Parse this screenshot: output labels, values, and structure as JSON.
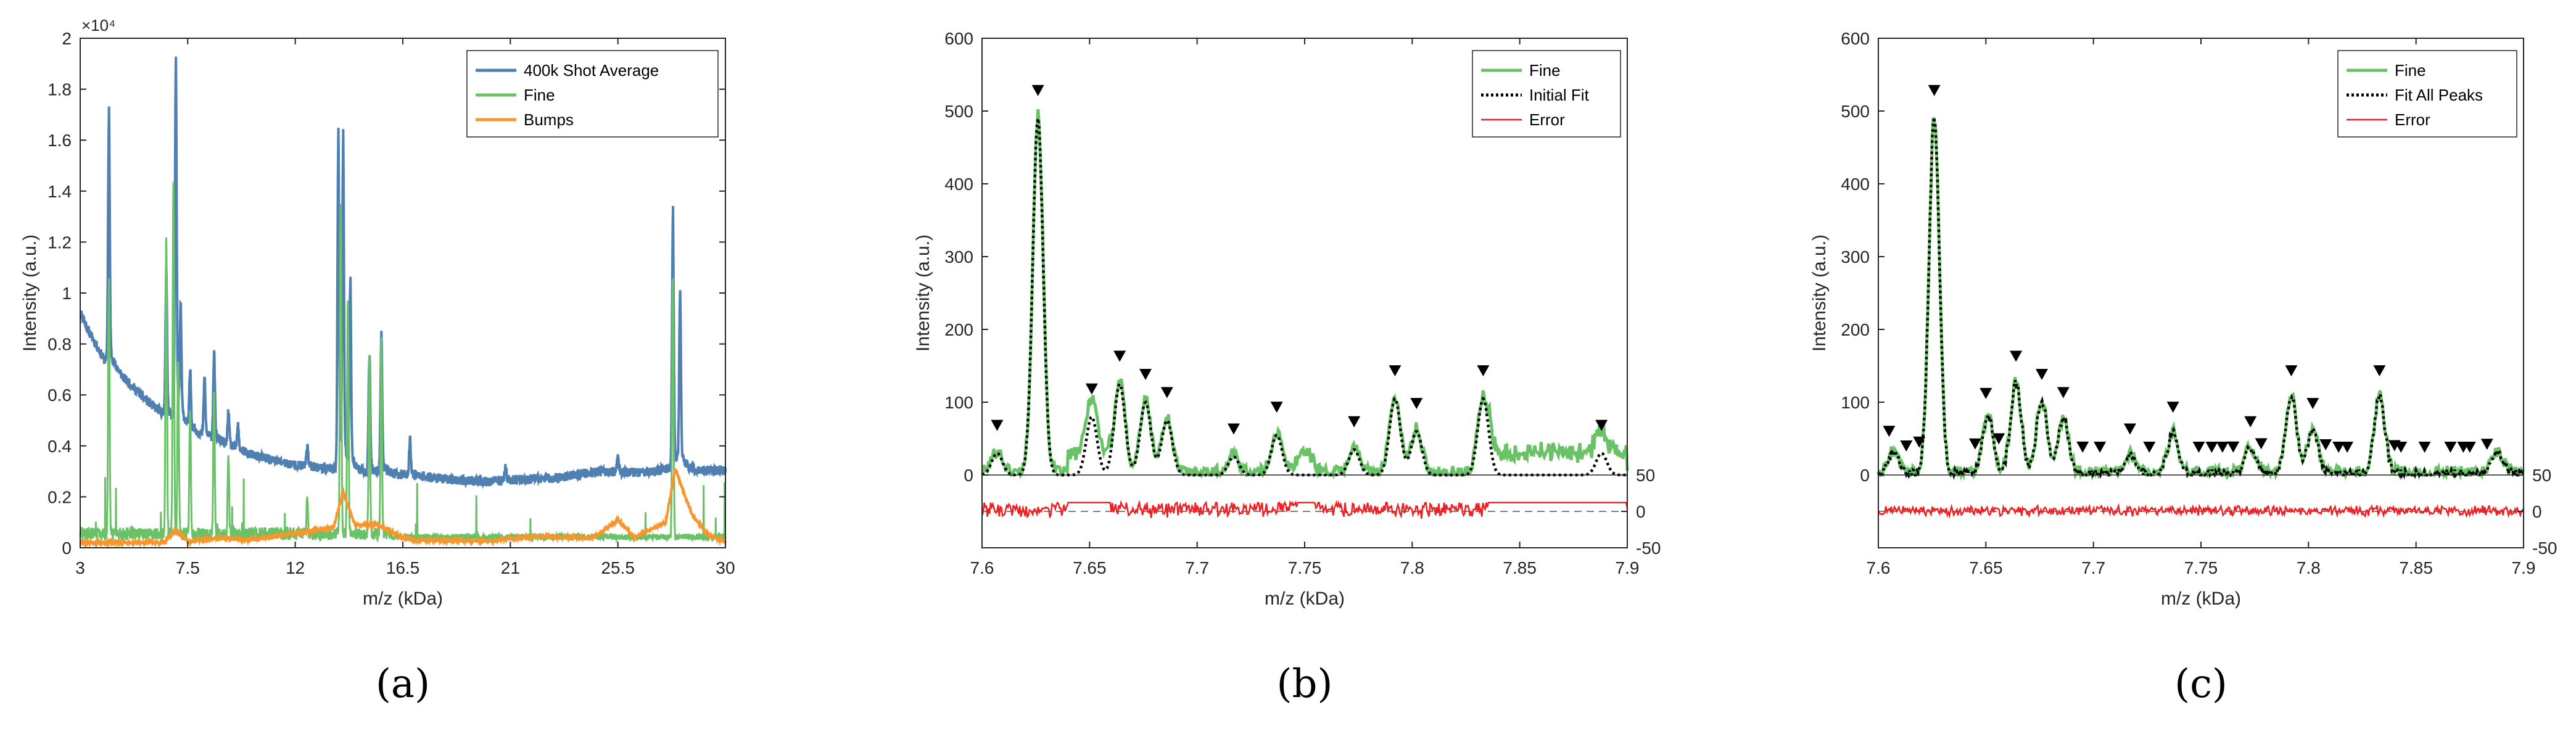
{
  "chart_data": [
    {
      "panel": "(a)",
      "type": "line",
      "title": "",
      "xlabel": "m/z (kDa)",
      "ylabel": "Intensity (a.u.)",
      "xlim": [
        3,
        30
      ],
      "ylim": [
        0,
        20000
      ],
      "y_exponent_label": "×10⁴",
      "xticks": [
        3,
        7.5,
        12,
        16.5,
        21,
        25.5,
        30
      ],
      "xtick_labels": [
        "3",
        "7.5",
        "12",
        "16.5",
        "21",
        "25.5",
        "30"
      ],
      "yticks": [
        0,
        2000,
        4000,
        6000,
        8000,
        10000,
        12000,
        14000,
        16000,
        18000,
        20000
      ],
      "ytick_labels": [
        "0",
        "0.2",
        "0.4",
        "0.6",
        "0.8",
        "1",
        "1.2",
        "1.4",
        "1.6",
        "1.8",
        "2"
      ],
      "legend_position": "top-right",
      "series": [
        {
          "name": "400k Shot Average",
          "color": "#4f80b1",
          "baseline": [
            [
              3,
              9300
            ],
            [
              3.3,
              8600
            ],
            [
              4,
              7400
            ],
            [
              5,
              6500
            ],
            [
              6,
              5600
            ],
            [
              7,
              4950
            ],
            [
              8,
              4500
            ],
            [
              9,
              4100
            ],
            [
              10,
              3700
            ],
            [
              11,
              3450
            ],
            [
              12,
              3250
            ],
            [
              13,
              3150
            ],
            [
              14,
              3050
            ],
            [
              15,
              2950
            ],
            [
              16,
              2900
            ],
            [
              17,
              2850
            ],
            [
              18,
              2720
            ],
            [
              19,
              2650
            ],
            [
              20,
              2600
            ],
            [
              21,
              2650
            ],
            [
              22,
              2700
            ],
            [
              23,
              2750
            ],
            [
              24,
              2900
            ],
            [
              25,
              3000
            ],
            [
              26,
              2950
            ],
            [
              27,
              3000
            ],
            [
              28,
              3150
            ],
            [
              29,
              3050
            ],
            [
              30,
              3000
            ]
          ],
          "peaks": [
            [
              4.2,
              16600
            ],
            [
              6.6,
              10500
            ],
            [
              7.0,
              18500
            ],
            [
              7.2,
              9000
            ],
            [
              7.6,
              6800
            ],
            [
              8.2,
              6600
            ],
            [
              8.6,
              7500
            ],
            [
              9.2,
              5300
            ],
            [
              9.6,
              4700
            ],
            [
              12.5,
              4000
            ],
            [
              13.8,
              15700
            ],
            [
              14.0,
              15200
            ],
            [
              14.3,
              10000
            ],
            [
              15.1,
              7500
            ],
            [
              15.6,
              8200
            ],
            [
              16.8,
              4200
            ],
            [
              20.8,
              3200
            ],
            [
              25.5,
              3600
            ],
            [
              27.8,
              12600
            ],
            [
              28.1,
              9800
            ]
          ]
        },
        {
          "name": "Fine",
          "color": "#6ac267",
          "peaks": [
            [
              4.2,
              10000
            ],
            [
              6.6,
              11800
            ],
            [
              6.9,
              13800
            ],
            [
              7.1,
              7000
            ],
            [
              7.6,
              5000
            ],
            [
              8.6,
              5800
            ],
            [
              9.2,
              3000
            ],
            [
              12.5,
              1500
            ],
            [
              13.9,
              13000
            ],
            [
              14.2,
              9300
            ],
            [
              15.1,
              6900
            ],
            [
              15.6,
              7600
            ],
            [
              27.8,
              10200
            ]
          ]
        },
        {
          "name": "Bumps",
          "color": "#f6962d",
          "values": [
            [
              3,
              200
            ],
            [
              6.5,
              200
            ],
            [
              7,
              700
            ],
            [
              7.5,
              250
            ],
            [
              9,
              400
            ],
            [
              10,
              300
            ],
            [
              13.6,
              800
            ],
            [
              14.0,
              2200
            ],
            [
              14.5,
              900
            ],
            [
              15.5,
              900
            ],
            [
              16.5,
              400
            ],
            [
              17,
              300
            ],
            [
              20,
              250
            ],
            [
              21,
              350
            ],
            [
              22,
              450
            ],
            [
              23,
              400
            ],
            [
              24.5,
              400
            ],
            [
              25.5,
              1100
            ],
            [
              26.2,
              400
            ],
            [
              27.5,
              1000
            ],
            [
              27.9,
              3100
            ],
            [
              28.6,
              1300
            ],
            [
              29.3,
              500
            ],
            [
              30,
              200
            ]
          ]
        }
      ]
    },
    {
      "panel": "(b)",
      "type": "line",
      "title": "",
      "xlabel": "m/z (kDa)",
      "ylabel": "Intensity (a.u.)",
      "xlim": [
        7.6,
        7.9
      ],
      "ylim": [
        -100,
        600
      ],
      "xticks": [
        7.6,
        7.65,
        7.7,
        7.75,
        7.8,
        7.85,
        7.9
      ],
      "xtick_labels": [
        "7.6",
        "7.65",
        "7.7",
        "7.75",
        "7.8",
        "7.85",
        "7.9"
      ],
      "yticks": [
        0,
        100,
        200,
        300,
        400,
        500,
        600
      ],
      "ytick_labels": [
        "0",
        "100",
        "200",
        "300",
        "400",
        "500",
        "600"
      ],
      "right_ticks": [
        50,
        0,
        -50
      ],
      "right_tick_labels": [
        "50",
        "0",
        "-50"
      ],
      "error_axis_zero": -50,
      "legend_position": "top-right",
      "peaks": [
        [
          7.607,
          30,
          0.0025
        ],
        [
          7.626,
          490,
          0.0024
        ],
        [
          7.651,
          80,
          0.0025
        ],
        [
          7.664,
          125,
          0.0025
        ],
        [
          7.676,
          100,
          0.0025
        ],
        [
          7.686,
          75,
          0.0025
        ],
        [
          7.717,
          25,
          0.0025
        ],
        [
          7.737,
          55,
          0.0025
        ],
        [
          7.773,
          35,
          0.0025
        ],
        [
          7.792,
          105,
          0.0025
        ],
        [
          7.802,
          60,
          0.0025
        ],
        [
          7.833,
          105,
          0.0025
        ],
        [
          7.888,
          30,
          0.0025
        ]
      ],
      "marker_positions": [
        7.607,
        7.626,
        7.651,
        7.664,
        7.676,
        7.686,
        7.717,
        7.737,
        7.773,
        7.792,
        7.802,
        7.833,
        7.888
      ],
      "series": [
        {
          "name": "Fine",
          "color": "#6ac267"
        },
        {
          "name": "Initial Fit",
          "color": "#000000"
        },
        {
          "name": "Error",
          "color": "#ed2024"
        }
      ]
    },
    {
      "panel": "(c)",
      "type": "line",
      "title": "",
      "xlabel": "m/z (kDa)",
      "ylabel": "Intensity (a.u.)",
      "xlim": [
        7.6,
        7.9
      ],
      "ylim": [
        -100,
        600
      ],
      "xticks": [
        7.6,
        7.65,
        7.7,
        7.75,
        7.8,
        7.85,
        7.9
      ],
      "xtick_labels": [
        "7.6",
        "7.65",
        "7.7",
        "7.75",
        "7.8",
        "7.85",
        "7.9"
      ],
      "yticks": [
        0,
        100,
        200,
        300,
        400,
        500,
        600
      ],
      "ytick_labels": [
        "0",
        "100",
        "200",
        "300",
        "400",
        "500",
        "600"
      ],
      "right_ticks": [
        50,
        0,
        -50
      ],
      "right_tick_labels": [
        "50",
        "0",
        "-50"
      ],
      "error_axis_zero": -50,
      "legend_position": "top-right",
      "peaks": [
        [
          7.607,
          30,
          0.0025
        ],
        [
          7.626,
          490,
          0.0024
        ],
        [
          7.651,
          80,
          0.0025
        ],
        [
          7.664,
          125,
          0.0025
        ],
        [
          7.676,
          100,
          0.0025
        ],
        [
          7.686,
          75,
          0.0025
        ],
        [
          7.717,
          25,
          0.0025
        ],
        [
          7.737,
          55,
          0.0025
        ],
        [
          7.773,
          35,
          0.0025
        ],
        [
          7.792,
          105,
          0.0025
        ],
        [
          7.802,
          60,
          0.0025
        ],
        [
          7.833,
          105,
          0.0025
        ],
        [
          7.888,
          30,
          0.0025
        ]
      ],
      "marker_positions": [
        7.605,
        7.613,
        7.619,
        7.626,
        7.645,
        7.65,
        7.656,
        7.664,
        7.676,
        7.686,
        7.695,
        7.703,
        7.717,
        7.726,
        7.737,
        7.749,
        7.755,
        7.76,
        7.765,
        7.773,
        7.778,
        7.792,
        7.802,
        7.808,
        7.814,
        7.818,
        7.833,
        7.84,
        7.843,
        7.854,
        7.866,
        7.872,
        7.875,
        7.883
      ],
      "series": [
        {
          "name": "Fine",
          "color": "#6ac267"
        },
        {
          "name": "Fit All Peaks",
          "color": "#000000"
        },
        {
          "name": "Error",
          "color": "#ed2024"
        }
      ]
    }
  ]
}
